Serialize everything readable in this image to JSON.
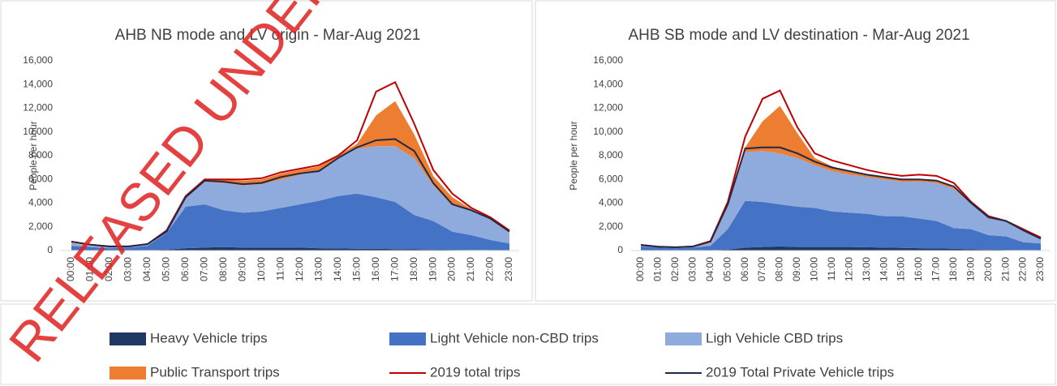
{
  "watermark": "RELEASED UNDER",
  "chart_data": [
    {
      "type": "area",
      "stacked": true,
      "title": "AHB NB mode and LV origin - Mar-Aug 2021",
      "y_label": "People per hour",
      "categories": [
        "00:00",
        "01:00",
        "02:00",
        "03:00",
        "04:00",
        "05:00",
        "06:00",
        "07:00",
        "08:00",
        "09:00",
        "10:00",
        "11:00",
        "12:00",
        "13:00",
        "14:00",
        "15:00",
        "16:00",
        "17:00",
        "18:00",
        "19:00",
        "20:00",
        "21:00",
        "22:00",
        "23:00"
      ],
      "ylim": [
        0,
        16000
      ],
      "yticks": [
        0,
        {
          "value": 2000,
          "label": "2,000"
        },
        {
          "value": 4000,
          "label": "4,000"
        },
        {
          "value": 6000,
          "label": "6,000"
        },
        {
          "value": 8000,
          "label": "8,000"
        },
        {
          "value": 10000,
          "label": "10,000"
        },
        {
          "value": 12000,
          "label": "12,000"
        },
        {
          "value": 14000,
          "label": "14,000"
        },
        {
          "value": 16000,
          "label": "16,000"
        }
      ],
      "legend": "bottom",
      "series": [
        {
          "name": "Heavy Vehicle trips",
          "color": "#1f3864",
          "values": [
            50,
            30,
            20,
            20,
            30,
            80,
            200,
            250,
            300,
            250,
            250,
            250,
            250,
            200,
            180,
            150,
            150,
            120,
            100,
            80,
            60,
            50,
            40,
            30
          ]
        },
        {
          "name": "Light Vehicle non-CBD trips",
          "color": "#4472c4",
          "values": [
            350,
            270,
            180,
            230,
            370,
            1420,
            3500,
            3650,
            3100,
            2950,
            3050,
            3350,
            3650,
            4000,
            4420,
            4650,
            4350,
            3980,
            2900,
            2420,
            1540,
            1250,
            860,
            570
          ]
        },
        {
          "name": "Ligh Vehicle CBD trips",
          "color": "#8faadc",
          "values": [
            200,
            100,
            100,
            50,
            100,
            100,
            800,
            1900,
            2300,
            2300,
            2300,
            2400,
            2500,
            2500,
            3200,
            3800,
            4300,
            4700,
            4800,
            3000,
            2200,
            2100,
            1700,
            900
          ]
        },
        {
          "name": "Public Transport trips",
          "color": "#ed7d31",
          "values": [
            50,
            20,
            20,
            20,
            50,
            50,
            100,
            100,
            300,
            400,
            400,
            500,
            400,
            400,
            200,
            400,
            2600,
            3800,
            2000,
            800,
            700,
            100,
            100,
            100
          ]
        },
        {
          "name": "2019 total trips",
          "color": "#c00000",
          "kind": "line",
          "values": [
            750,
            500,
            350,
            350,
            550,
            1700,
            4600,
            6000,
            6000,
            6000,
            6100,
            6600,
            6900,
            7200,
            8000,
            9300,
            13400,
            14200,
            10700,
            6800,
            4800,
            3600,
            2800,
            1700
          ]
        },
        {
          "name": "2019 Total Private Vehicle  trips",
          "color": "#1f2a4a",
          "kind": "line",
          "values": [
            750,
            500,
            350,
            350,
            550,
            1600,
            4500,
            5900,
            5800,
            5600,
            5700,
            6200,
            6500,
            6700,
            7800,
            8700,
            9300,
            9400,
            8400,
            5700,
            3900,
            3400,
            2700,
            1600
          ]
        }
      ]
    },
    {
      "type": "area",
      "stacked": true,
      "title": "AHB SB mode and LV destination - Mar-Aug 2021",
      "y_label": "People per hour",
      "categories": [
        "00:00",
        "01:00",
        "02:00",
        "03:00",
        "04:00",
        "05:00",
        "06:00",
        "07:00",
        "08:00",
        "09:00",
        "10:00",
        "11:00",
        "12:00",
        "13:00",
        "14:00",
        "15:00",
        "16:00",
        "17:00",
        "18:00",
        "19:00",
        "20:00",
        "21:00",
        "22:00",
        "23:00"
      ],
      "ylim": [
        0,
        16000
      ],
      "yticks": [
        0,
        {
          "value": 2000,
          "label": "2,000"
        },
        {
          "value": 4000,
          "label": "4,000"
        },
        {
          "value": 6000,
          "label": "6,000"
        },
        {
          "value": 8000,
          "label": "8,000"
        },
        {
          "value": 10000,
          "label": "10,000"
        },
        {
          "value": 12000,
          "label": "12,000"
        },
        {
          "value": 14000,
          "label": "14,000"
        },
        {
          "value": 16000,
          "label": "16,000"
        }
      ],
      "series": [
        {
          "name": "Heavy Vehicle trips",
          "color": "#1f3864",
          "values": [
            30,
            20,
            20,
            20,
            30,
            80,
            250,
            300,
            350,
            300,
            300,
            300,
            300,
            280,
            250,
            230,
            200,
            180,
            150,
            100,
            80,
            60,
            50,
            30
          ]
        },
        {
          "name": "Light Vehicle non-CBD trips",
          "color": "#4472c4",
          "values": [
            320,
            230,
            180,
            230,
            370,
            1720,
            3950,
            3800,
            3550,
            3400,
            3300,
            3000,
            2900,
            2820,
            2650,
            2670,
            2500,
            2320,
            1750,
            1700,
            1220,
            1140,
            650,
            570
          ]
        },
        {
          "name": "Ligh Vehicle CBD trips",
          "color": "#8faadc",
          "values": [
            50,
            50,
            50,
            50,
            200,
            1900,
            4100,
            4300,
            4300,
            4100,
            3600,
            3400,
            3200,
            3100,
            3100,
            2900,
            3100,
            3200,
            3300,
            2100,
            1500,
            1300,
            1000,
            400
          ]
        },
        {
          "name": "Public Transport trips",
          "color": "#ed7d31",
          "values": [
            20,
            10,
            10,
            20,
            50,
            200,
            400,
            2500,
            4000,
            2100,
            600,
            400,
            300,
            200,
            200,
            200,
            200,
            200,
            100,
            0,
            0,
            0,
            0,
            0
          ]
        },
        {
          "name": "2019 total trips",
          "color": "#c00000",
          "kind": "line",
          "values": [
            480,
            330,
            280,
            350,
            800,
            4100,
            9600,
            12800,
            13500,
            10400,
            8200,
            7600,
            7200,
            6800,
            6500,
            6300,
            6400,
            6300,
            5700,
            4100,
            2900,
            2500,
            1800,
            1100
          ]
        },
        {
          "name": "2019 Total Private Vehicle  trips",
          "color": "#1f2a4a",
          "kind": "line",
          "values": [
            470,
            320,
            270,
            340,
            750,
            3900,
            8600,
            8700,
            8700,
            8200,
            7500,
            7000,
            6700,
            6400,
            6200,
            6000,
            6000,
            5900,
            5400,
            4000,
            2800,
            2500,
            1700,
            1000
          ]
        }
      ]
    }
  ]
}
